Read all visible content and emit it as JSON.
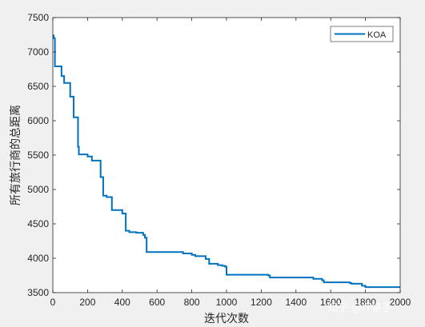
{
  "chart_data": {
    "type": "line",
    "xlabel": "迭代次数",
    "ylabel": "所有旅行商的总距离",
    "xlim": [
      0,
      2000
    ],
    "ylim": [
      3500,
      7500
    ],
    "xticks": [
      "0",
      "200",
      "400",
      "600",
      "800",
      "1000",
      "1200",
      "1400",
      "1600",
      "1800",
      "2000"
    ],
    "yticks": [
      "3500",
      "4000",
      "4500",
      "5000",
      "5500",
      "6000",
      "6500",
      "7000",
      "7500"
    ],
    "grid": false,
    "legend_position": "top-right",
    "series": [
      {
        "name": "KOA",
        "color": "#0072bd",
        "x": [
          0,
          5,
          12,
          50,
          65,
          100,
          120,
          145,
          150,
          200,
          225,
          275,
          290,
          310,
          340,
          400,
          420,
          440,
          480,
          520,
          530,
          540,
          740,
          750,
          800,
          820,
          880,
          900,
          950,
          975,
          990,
          1000,
          1100,
          1240,
          1250,
          1500,
          1550,
          1560,
          1600,
          1700,
          1710,
          1720,
          1780,
          1800,
          2000
        ],
        "y": [
          7240,
          7200,
          6790,
          6650,
          6550,
          6350,
          6050,
          5620,
          5510,
          5480,
          5420,
          5180,
          4910,
          4890,
          4700,
          4650,
          4400,
          4380,
          4370,
          4340,
          4300,
          4090,
          4090,
          4070,
          4050,
          4030,
          3990,
          3920,
          3900,
          3890,
          3880,
          3760,
          3760,
          3750,
          3720,
          3700,
          3680,
          3650,
          3650,
          3650,
          3640,
          3630,
          3600,
          3580,
          3580
        ]
      }
    ]
  },
  "watermark": "知乎 @IT猿手"
}
